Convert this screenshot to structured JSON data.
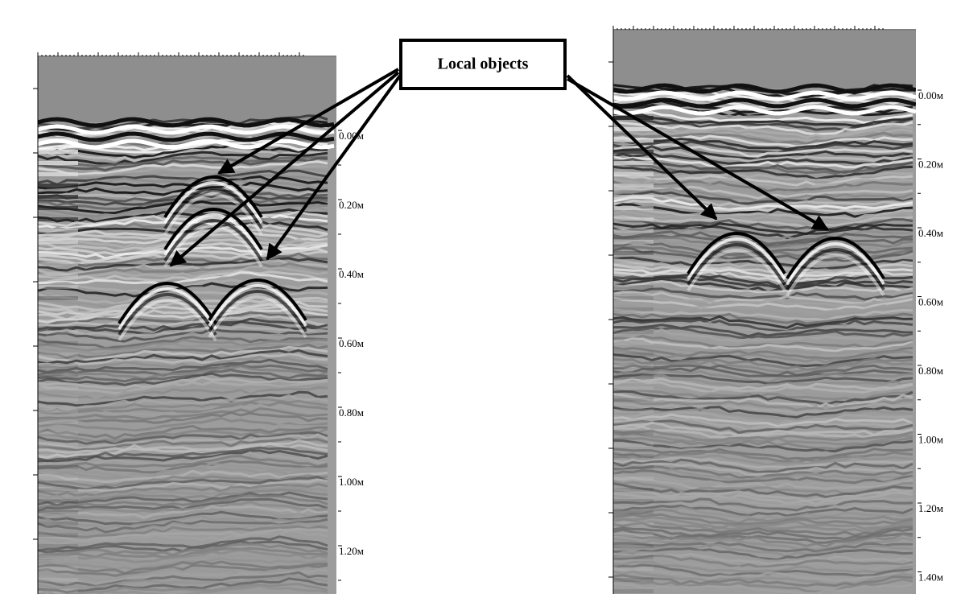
{
  "callout": {
    "label": "Local objects"
  },
  "left_panel": {
    "depth_labels": [
      "0.00м",
      "0.20м",
      "0.40м",
      "0.60м",
      "0.80м",
      "1.00м",
      "1.20м"
    ]
  },
  "right_panel": {
    "depth_labels": [
      "0.00м",
      "0.20м",
      "0.40м",
      "0.60м",
      "0.80м",
      "1.00м",
      "1.20м",
      "1.40м"
    ]
  }
}
